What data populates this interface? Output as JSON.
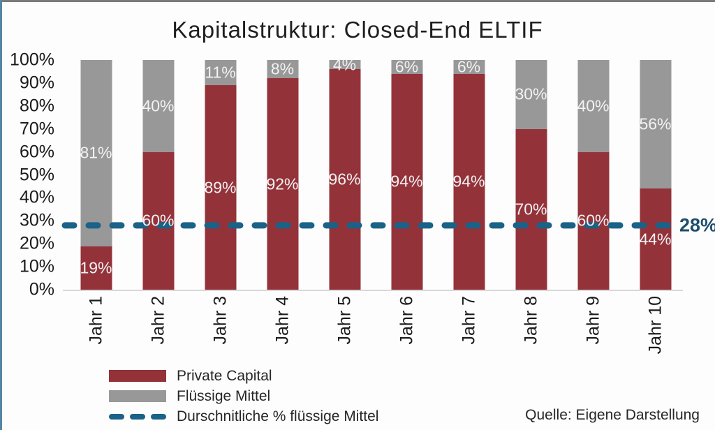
{
  "title": "Kapitalstruktur: Closed-End ELTIF",
  "source": "Quelle: Eigene Darstellung",
  "colors": {
    "private_capital": "#94323A",
    "fluessige_mittel": "#989898",
    "average_line": "#1A6287",
    "average_label_text": "#1D4E6F",
    "bar_label_text": "#F2F2F2",
    "axis_line": "#D8D8D8",
    "top_border": "#7A7A7A",
    "left_border": "#5586A4"
  },
  "chart_data": {
    "type": "bar",
    "stacked": true,
    "grid": false,
    "legend_position": "bottom-left",
    "categories": [
      "Jahr 1",
      "Jahr 2",
      "Jahr 3",
      "Jahr 4",
      "Jahr 5",
      "Jahr 6",
      "Jahr 7",
      "Jahr 8",
      "Jahr 9",
      "Jahr 10"
    ],
    "series": [
      {
        "name": "Private Capital",
        "color": "#94323A",
        "values": [
          19,
          60,
          89,
          92,
          96,
          94,
          94,
          70,
          60,
          44
        ]
      },
      {
        "name": "Flüssige Mittel",
        "color": "#989898",
        "values": [
          81,
          40,
          11,
          8,
          4,
          6,
          6,
          30,
          40,
          56
        ]
      }
    ],
    "average_line": {
      "label": "Durschnitliche % flüssige Mittel",
      "value": 28,
      "display": "28%",
      "color": "#1A6287",
      "label_color": "#1D4E6F",
      "style": "dashed"
    },
    "ylim": [
      0,
      100
    ],
    "xlabel": "",
    "ylabel": "",
    "y_ticks": [
      {
        "value": 100,
        "label": "100%"
      },
      {
        "value": 90,
        "label": "90%"
      },
      {
        "value": 80,
        "label": "80%"
      },
      {
        "value": 70,
        "label": "70%"
      },
      {
        "value": 60,
        "label": "60%"
      },
      {
        "value": 50,
        "label": "50%"
      },
      {
        "value": 40,
        "label": "40%"
      },
      {
        "value": 30,
        "label": "30%"
      },
      {
        "value": 20,
        "label": "20%"
      },
      {
        "value": 10,
        "label": "10%"
      },
      {
        "value": 0,
        "label": "0%"
      }
    ]
  },
  "legend": {
    "items": [
      {
        "swatch": "rect",
        "color": "#94323A",
        "label": "Private Capital"
      },
      {
        "swatch": "rect",
        "color": "#989898",
        "label": "Flüssige Mittel"
      },
      {
        "swatch": "dash",
        "color": "#1A6287",
        "label": "Durschnitliche % flüssige Mittel"
      }
    ]
  }
}
